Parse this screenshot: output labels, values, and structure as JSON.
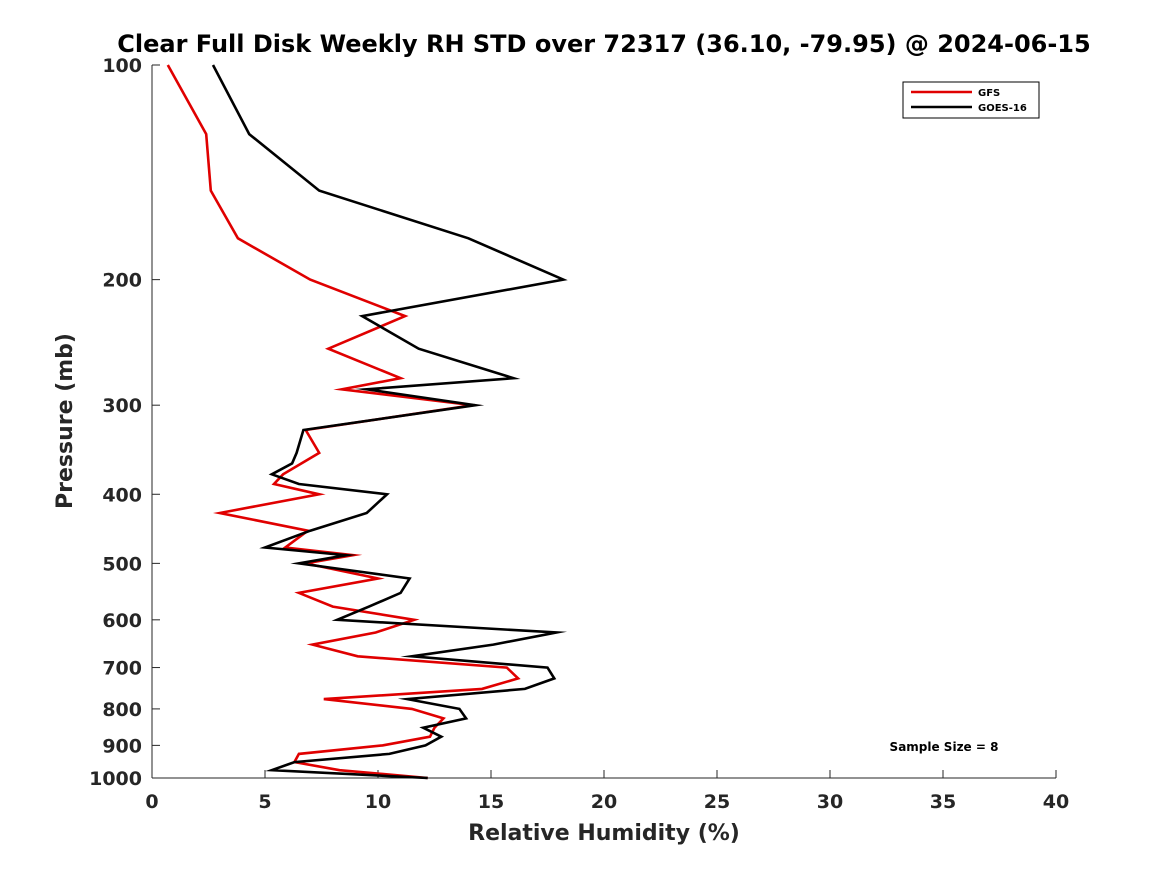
{
  "chart_data": {
    "type": "line",
    "title": "Clear Full Disk Weekly RH STD over 72317 (36.10, -79.95) @ 2024-06-15",
    "xlabel": "Relative Humidity (%)",
    "ylabel": "Pressure (mb)",
    "xlim": [
      0,
      40
    ],
    "ylim": [
      100,
      1000
    ],
    "y_scale": "log",
    "y_reversed": true,
    "xticks": [
      "0",
      "5",
      "10",
      "15",
      "20",
      "25",
      "30",
      "35",
      "40"
    ],
    "yticks": [
      "100",
      "200",
      "300",
      "400",
      "500",
      "600",
      "700",
      "800",
      "900",
      "1000"
    ],
    "grid": false,
    "legend_position": "top-right",
    "annotation": "Sample Size = 8",
    "series": [
      {
        "name": "GFS",
        "color": "#e00000",
        "points": [
          [
            0.7,
            100
          ],
          [
            2.4,
            125
          ],
          [
            2.6,
            150
          ],
          [
            3.8,
            175
          ],
          [
            7.0,
            200
          ],
          [
            11.2,
            225
          ],
          [
            7.8,
            250
          ],
          [
            11.0,
            275
          ],
          [
            8.4,
            285
          ],
          [
            14.2,
            300
          ],
          [
            6.8,
            325
          ],
          [
            7.4,
            350
          ],
          [
            5.8,
            375
          ],
          [
            5.4,
            387
          ],
          [
            7.4,
            400
          ],
          [
            3.0,
            425
          ],
          [
            6.9,
            450
          ],
          [
            5.9,
            475
          ],
          [
            8.9,
            487
          ],
          [
            6.8,
            500
          ],
          [
            10.0,
            525
          ],
          [
            6.5,
            550
          ],
          [
            8.0,
            575
          ],
          [
            11.6,
            600
          ],
          [
            9.9,
            625
          ],
          [
            7.1,
            650
          ],
          [
            9.1,
            675
          ],
          [
            15.7,
            700
          ],
          [
            16.2,
            725
          ],
          [
            14.6,
            750
          ],
          [
            7.6,
            775
          ],
          [
            11.5,
            800
          ],
          [
            12.9,
            825
          ],
          [
            12.5,
            850
          ],
          [
            12.3,
            875
          ],
          [
            10.2,
            900
          ],
          [
            6.5,
            925
          ],
          [
            6.3,
            950
          ],
          [
            8.3,
            975
          ],
          [
            12.2,
            1000
          ]
        ]
      },
      {
        "name": "GOES-16",
        "color": "#000000",
        "points": [
          [
            2.7,
            100
          ],
          [
            4.3,
            125
          ],
          [
            7.4,
            150
          ],
          [
            14.0,
            175
          ],
          [
            18.2,
            200
          ],
          [
            9.3,
            225
          ],
          [
            11.8,
            250
          ],
          [
            16.0,
            275
          ],
          [
            9.5,
            285
          ],
          [
            14.3,
            300
          ],
          [
            6.7,
            325
          ],
          [
            6.4,
            350
          ],
          [
            6.2,
            362
          ],
          [
            5.3,
            375
          ],
          [
            6.5,
            387
          ],
          [
            10.4,
            400
          ],
          [
            9.5,
            425
          ],
          [
            7.0,
            450
          ],
          [
            5.0,
            475
          ],
          [
            8.6,
            487
          ],
          [
            6.5,
            500
          ],
          [
            11.4,
            525
          ],
          [
            11.0,
            550
          ],
          [
            9.6,
            575
          ],
          [
            8.2,
            600
          ],
          [
            17.9,
            625
          ],
          [
            15.1,
            650
          ],
          [
            11.5,
            675
          ],
          [
            17.5,
            700
          ],
          [
            17.8,
            725
          ],
          [
            16.5,
            750
          ],
          [
            11.3,
            775
          ],
          [
            13.6,
            800
          ],
          [
            13.9,
            825
          ],
          [
            12.0,
            850
          ],
          [
            12.8,
            875
          ],
          [
            12.1,
            900
          ],
          [
            10.5,
            925
          ],
          [
            6.3,
            950
          ],
          [
            5.3,
            975
          ],
          [
            12.2,
            1000
          ]
        ]
      }
    ]
  }
}
